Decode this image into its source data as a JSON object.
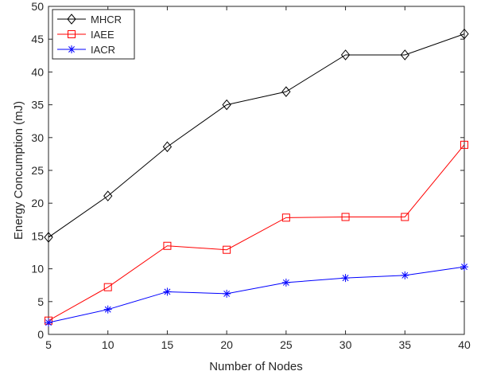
{
  "chart_data": {
    "type": "line",
    "title": "",
    "xlabel": "Number of Nodes",
    "ylabel": "Energy Concumption (mJ)",
    "x": [
      5,
      10,
      15,
      20,
      25,
      30,
      35,
      40
    ],
    "xlim": [
      5,
      40
    ],
    "ylim": [
      0,
      50
    ],
    "xticks": [
      5,
      10,
      15,
      20,
      25,
      30,
      35,
      40
    ],
    "yticks": [
      0,
      5,
      10,
      15,
      20,
      25,
      30,
      35,
      40,
      45,
      50
    ],
    "grid": false,
    "legend_position": "top-left",
    "series": [
      {
        "name": "MHCR",
        "color": "#000000",
        "marker": "diamond",
        "values": [
          14.8,
          21.1,
          28.6,
          35.0,
          37.0,
          42.6,
          42.6,
          45.8
        ]
      },
      {
        "name": "IAEE",
        "color": "#ff0000",
        "marker": "square",
        "values": [
          2.1,
          7.2,
          13.5,
          12.9,
          17.8,
          17.9,
          17.9,
          28.9
        ]
      },
      {
        "name": "IACR",
        "color": "#0000ff",
        "marker": "asterisk",
        "values": [
          1.8,
          3.8,
          6.5,
          6.2,
          7.9,
          8.6,
          9.0,
          10.3
        ]
      }
    ]
  }
}
